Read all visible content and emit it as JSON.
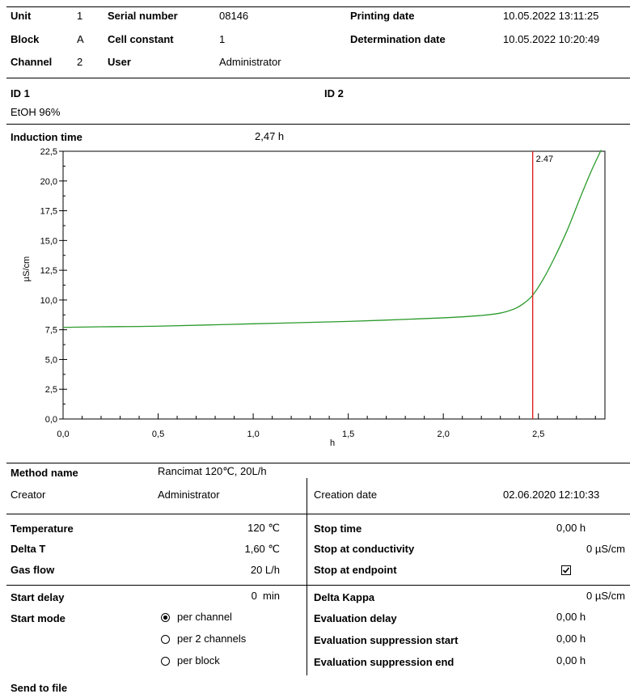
{
  "header": {
    "unit_label": "Unit",
    "unit_value": "1",
    "block_label": "Block",
    "block_value": "A",
    "channel_label": "Channel",
    "channel_value": "2",
    "serial_label": "Serial number",
    "serial_value": "08146",
    "cell_label": "Cell constant",
    "cell_value": "1",
    "user_label": "User",
    "user_value": "Administrator",
    "printing_label": "Printing date",
    "printing_value": "10.05.2022 13:11:25",
    "determination_label": "Determination date",
    "determination_value": "10.05.2022 10:20:49"
  },
  "ids": {
    "id1_label": "ID 1",
    "id1_value": "EtOH 96%",
    "id2_label": "ID 2"
  },
  "induction": {
    "label": "Induction time",
    "value": "2,47 h"
  },
  "chart_data": {
    "type": "line",
    "title": "",
    "xlabel": "h",
    "ylabel": "µS/cm",
    "xlim": [
      0,
      2.85
    ],
    "ylim": [
      0,
      22.5
    ],
    "x_ticks": [
      "0,0",
      "0,5",
      "1,0",
      "1,5",
      "2,0",
      "2,5"
    ],
    "y_ticks": [
      "0,0",
      "2,5",
      "5,0",
      "7,5",
      "10,0",
      "12,5",
      "15,0",
      "17,5",
      "20,0",
      "22,5"
    ],
    "series": [
      {
        "color": "#2a9a2a",
        "x": [
          0,
          0.2,
          0.5,
          1.0,
          1.5,
          2.0,
          2.2,
          2.3,
          2.38,
          2.43,
          2.47,
          2.52,
          2.58,
          2.65,
          2.72,
          2.78,
          2.83
        ],
        "values": [
          7.7,
          7.75,
          7.8,
          8.0,
          8.2,
          8.5,
          8.7,
          8.9,
          9.3,
          9.8,
          10.4,
          11.6,
          13.4,
          15.8,
          18.6,
          20.9,
          22.6
        ]
      }
    ],
    "marker": {
      "x": 2.47,
      "label": "2.47",
      "color": "#e02020"
    },
    "grid": false
  },
  "method": {
    "name_label": "Method name",
    "name_value": "Rancimat 120℃, 20L/h",
    "creator_label": "Creator",
    "creator_value": "Administrator",
    "creation_label": "Creation date",
    "creation_value": "02.06.2020 12:10:33"
  },
  "params": {
    "temperature_label": "Temperature",
    "temperature_value": "120 ℃",
    "delta_t_label": "Delta T",
    "delta_t_value": "1,60 ℃",
    "gas_flow_label": "Gas flow",
    "gas_flow_value": "20 L/h",
    "start_delay_label": "Start delay",
    "start_delay_value": "0  min",
    "start_mode_label": "Start mode",
    "start_mode_options": [
      "per channel",
      "per 2 channels",
      "per block"
    ],
    "start_mode_selected": "per channel",
    "stop_time_label": "Stop time",
    "stop_time_value": "0,00 h",
    "stop_cond_label": "Stop at conductivity",
    "stop_cond_value": "0 µS/cm",
    "stop_endpoint_label": "Stop at endpoint",
    "stop_endpoint_checked": true,
    "delta_kappa_label": "Delta Kappa",
    "delta_kappa_value": "0 µS/cm",
    "eval_delay_label": "Evaluation delay",
    "eval_delay_value": "0,00 h",
    "eval_sup_start_label": "Evaluation suppression start",
    "eval_sup_start_value": "0,00 h",
    "eval_sup_end_label": "Evaluation suppression end",
    "eval_sup_end_value": "0,00 h"
  },
  "footer": {
    "send_to_file_label": "Send to file"
  }
}
